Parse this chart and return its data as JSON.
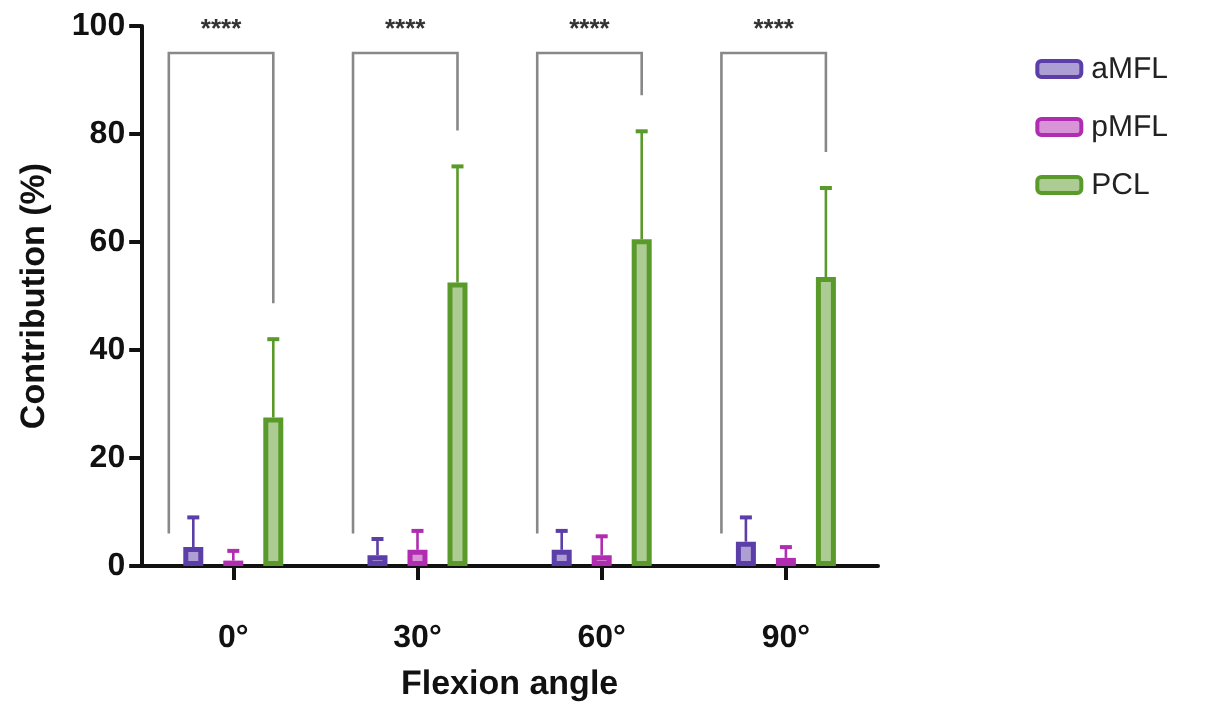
{
  "chart_data": {
    "type": "bar",
    "xlabel": "Flexion angle",
    "ylabel": "Contribution (%)",
    "categories": [
      "0°",
      "30°",
      "60°",
      "90°"
    ],
    "series": [
      {
        "name": "aMFL",
        "color": "#5b3ea8",
        "values": [
          3.5,
          2,
          3,
          4.5
        ],
        "errors": [
          [
            3.5,
            9
          ],
          [
            2,
            5
          ],
          [
            3,
            6.5
          ],
          [
            4.5,
            9
          ]
        ]
      },
      {
        "name": "pMFL",
        "color": "#b02cb0",
        "values": [
          1,
          3,
          2,
          1.5
        ],
        "errors": [
          [
            1,
            2.8
          ],
          [
            3,
            6.5
          ],
          [
            2,
            5.5
          ],
          [
            1.5,
            3.5
          ]
        ]
      },
      {
        "name": "PCL",
        "color": "#5a9a2a",
        "values": [
          27.5,
          52.5,
          60.5,
          53.5
        ],
        "errors": [
          [
            27.5,
            42
          ],
          [
            52.5,
            74
          ],
          [
            60.5,
            80.5
          ],
          [
            53.5,
            70
          ]
        ]
      }
    ],
    "annotations": [
      "****",
      "****",
      "****",
      "****"
    ],
    "ylim": [
      0,
      100
    ],
    "yticks": [
      0,
      20,
      40,
      60,
      80,
      100
    ],
    "grid": false,
    "legend": "top right"
  }
}
